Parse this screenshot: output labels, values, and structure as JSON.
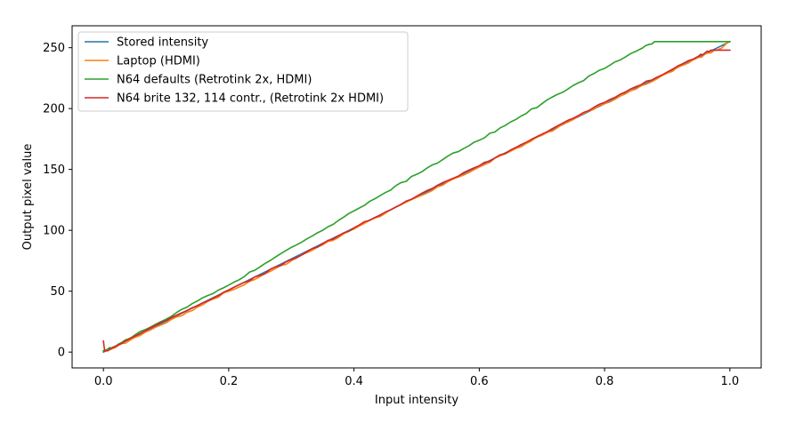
{
  "chart_data": {
    "type": "line",
    "title": "",
    "xlabel": "Input intensity",
    "ylabel": "Output pixel value",
    "xlim": [
      -0.05,
      1.05
    ],
    "ylim": [
      -13,
      268
    ],
    "xticks": [
      0.0,
      0.2,
      0.4,
      0.6,
      0.8,
      1.0
    ],
    "xtick_labels": [
      "0.0",
      "0.2",
      "0.4",
      "0.6",
      "0.8",
      "1.0"
    ],
    "yticks": [
      0,
      50,
      100,
      150,
      200,
      250
    ],
    "ytick_labels": [
      "0",
      "50",
      "100",
      "150",
      "200",
      "250"
    ],
    "grid": false,
    "legend_position": "upper-left",
    "series": [
      {
        "name": "Stored intensity",
        "color": "#1f77b4",
        "x": [
          0.0,
          0.1,
          0.2,
          0.3,
          0.4,
          0.5,
          0.6,
          0.7,
          0.8,
          0.9,
          1.0
        ],
        "y": [
          0,
          25.5,
          51,
          76.5,
          102,
          127.5,
          153,
          178.5,
          204,
          229.5,
          255
        ]
      },
      {
        "name": "Laptop (HDMI)",
        "color": "#ff7f0e",
        "x": [
          0.0,
          0.02,
          0.05,
          0.1,
          0.15,
          0.2,
          0.25,
          0.3,
          0.35,
          0.4,
          0.45,
          0.5,
          0.55,
          0.6,
          0.65,
          0.7,
          0.75,
          0.8,
          0.85,
          0.9,
          0.95,
          0.98,
          1.0
        ],
        "y": [
          1,
          4,
          12,
          24,
          37,
          50,
          62,
          75,
          88,
          101,
          114,
          127,
          140,
          152,
          165,
          178,
          191,
          204,
          216,
          229,
          242,
          248,
          255
        ]
      },
      {
        "name": "N64 defaults (Retrotink 2x, HDMI)",
        "color": "#2ca02c",
        "x": [
          0.0,
          0.02,
          0.05,
          0.1,
          0.15,
          0.2,
          0.25,
          0.3,
          0.35,
          0.4,
          0.45,
          0.5,
          0.55,
          0.6,
          0.65,
          0.7,
          0.75,
          0.8,
          0.85,
          0.88,
          0.9,
          0.95,
          1.0
        ],
        "y": [
          1,
          5,
          14,
          27,
          42,
          55,
          70,
          86,
          100,
          116,
          131,
          146,
          161,
          174,
          189,
          204,
          219,
          233,
          247,
          255,
          255,
          255,
          255
        ]
      },
      {
        "name": "N64 brite 132, 114 contr., (Retrotink 2x HDMI)",
        "color": "#d62728",
        "x": [
          0.0,
          0.002,
          0.005,
          0.02,
          0.05,
          0.1,
          0.15,
          0.2,
          0.25,
          0.3,
          0.35,
          0.4,
          0.45,
          0.5,
          0.55,
          0.6,
          0.65,
          0.7,
          0.75,
          0.8,
          0.85,
          0.9,
          0.95,
          0.97,
          1.0
        ],
        "y": [
          9,
          1,
          1,
          5,
          13,
          26,
          38,
          51,
          63,
          76,
          89,
          102,
          115,
          128,
          141,
          153,
          166,
          179,
          192,
          205,
          218,
          230,
          243,
          248,
          248
        ]
      }
    ]
  }
}
